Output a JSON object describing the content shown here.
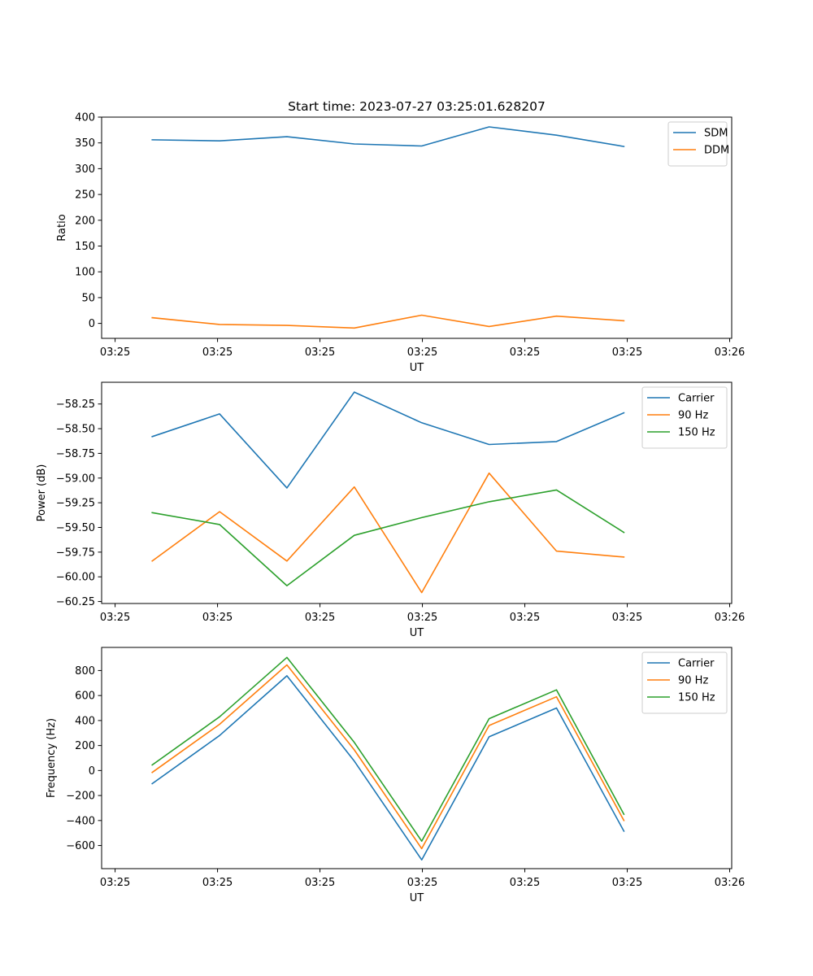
{
  "colors": {
    "blue": "#1f77b4",
    "orange": "#ff7f0e",
    "green": "#2ca02c"
  },
  "chart_data": [
    {
      "type": "line",
      "title": "Start time: 2023-07-27 03:25:01.628207",
      "xlabel": "UT",
      "ylabel": "Ratio",
      "x": [
        1,
        2,
        3,
        4,
        5,
        6,
        7,
        8
      ],
      "xlim": [
        0.25,
        9.6
      ],
      "xticks": [
        0.45,
        1.97,
        3.49,
        5.01,
        6.53,
        8.05,
        9.57
      ],
      "xtick_labels": [
        "03:25",
        "03:25",
        "03:25",
        "03:25",
        "03:25",
        "03:25",
        "03:26"
      ],
      "ylim": [
        -29,
        400
      ],
      "yticks": [
        0,
        50,
        100,
        150,
        200,
        250,
        300,
        350,
        400
      ],
      "ytick_labels": [
        "0",
        "50",
        "100",
        "150",
        "200",
        "250",
        "300",
        "350",
        "400"
      ],
      "grid": false,
      "legend": "upper right",
      "series": [
        {
          "name": "SDM",
          "color": "#1f77b4",
          "values": [
            356,
            354,
            362,
            348,
            344,
            381,
            365,
            343
          ]
        },
        {
          "name": "DDM",
          "color": "#ff7f0e",
          "values": [
            11,
            -2,
            -4,
            -9,
            16,
            -6,
            14,
            5
          ]
        }
      ]
    },
    {
      "type": "line",
      "title": "",
      "xlabel": "UT",
      "ylabel": "Power (dB)",
      "x": [
        1,
        2,
        3,
        4,
        5,
        6,
        7,
        8
      ],
      "xlim": [
        0.25,
        9.6
      ],
      "xticks": [
        0.45,
        1.97,
        3.49,
        5.01,
        6.53,
        8.05,
        9.57
      ],
      "xtick_labels": [
        "03:25",
        "03:25",
        "03:25",
        "03:25",
        "03:25",
        "03:25",
        "03:26"
      ],
      "ylim": [
        -60.27,
        -58.03
      ],
      "yticks": [
        -60.25,
        -60.0,
        -59.75,
        -59.5,
        -59.25,
        -59.0,
        -58.75,
        -58.5,
        -58.25
      ],
      "ytick_labels": [
        "−60.25",
        "−60.00",
        "−59.75",
        "−59.50",
        "−59.25",
        "−59.00",
        "−58.75",
        "−58.50",
        "−58.25"
      ],
      "grid": false,
      "legend": "upper right",
      "series": [
        {
          "name": "Carrier",
          "color": "#1f77b4",
          "values": [
            -58.58,
            -58.35,
            -59.1,
            -58.13,
            -58.44,
            -58.66,
            -58.63,
            -58.34
          ]
        },
        {
          "name": "90 Hz",
          "color": "#ff7f0e",
          "values": [
            -59.84,
            -59.34,
            -59.84,
            -59.09,
            -60.16,
            -58.95,
            -59.74,
            -59.8
          ]
        },
        {
          "name": "150 Hz",
          "color": "#2ca02c",
          "values": [
            -59.35,
            -59.47,
            -60.09,
            -59.58,
            -59.4,
            -59.24,
            -59.12,
            -59.55
          ]
        }
      ]
    },
    {
      "type": "line",
      "title": "",
      "xlabel": "UT",
      "ylabel": "Frequency (Hz)",
      "x": [
        1,
        2,
        3,
        4,
        5,
        6,
        7,
        8
      ],
      "xlim": [
        0.25,
        9.6
      ],
      "xticks": [
        0.45,
        1.97,
        3.49,
        5.01,
        6.53,
        8.05,
        9.57
      ],
      "xtick_labels": [
        "03:25",
        "03:25",
        "03:25",
        "03:25",
        "03:25",
        "03:25",
        "03:26"
      ],
      "ylim": [
        -785,
        985
      ],
      "yticks": [
        -600,
        -400,
        -200,
        0,
        200,
        400,
        600,
        800
      ],
      "ytick_labels": [
        "−600",
        "−400",
        "−200",
        "0",
        "200",
        "400",
        "600",
        "800"
      ],
      "grid": false,
      "legend": "upper right",
      "series": [
        {
          "name": "Carrier",
          "color": "#1f77b4",
          "values": [
            -105,
            280,
            758,
            75,
            -715,
            270,
            500,
            -485
          ]
        },
        {
          "name": "90 Hz",
          "color": "#ff7f0e",
          "values": [
            -15,
            370,
            845,
            165,
            -625,
            360,
            590,
            -400
          ]
        },
        {
          "name": "150 Hz",
          "color": "#2ca02c",
          "values": [
            45,
            430,
            905,
            225,
            -565,
            415,
            645,
            -350
          ]
        }
      ]
    }
  ]
}
